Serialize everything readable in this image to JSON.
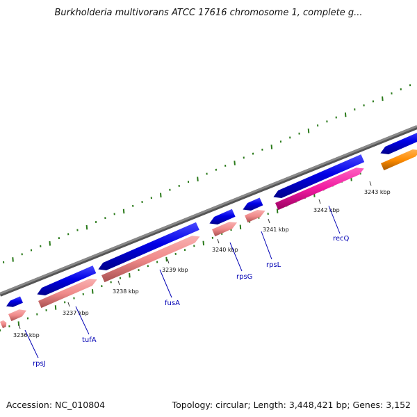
{
  "title": "Burkholderia multivorans ATCC 17616 chromosome 1, complete g...",
  "footer": {
    "accession": "Accession: NC_010804",
    "summary": "Topology: circular; Length: 3,448,421 bp; Genes: 3,152"
  },
  "colors": {
    "backbone": "#8a8a8a",
    "gc_skew": "#2a7a1a",
    "cds_forward": "#0000e6",
    "rna_light": "#f08a8a",
    "rna_magenta": "#f01aa0",
    "orange": "#ff8c00",
    "label": "#0000b4"
  },
  "ticks": [
    "3236 kbp",
    "3237 kbp",
    "3238 kbp",
    "3239 kbp",
    "3240 kbp",
    "3241 kbp",
    "3242 kbp",
    "3243 kbp"
  ],
  "genes": [
    "rpsJ",
    "tufA",
    "fusA",
    "rpsG",
    "rpsL",
    "recQ"
  ]
}
